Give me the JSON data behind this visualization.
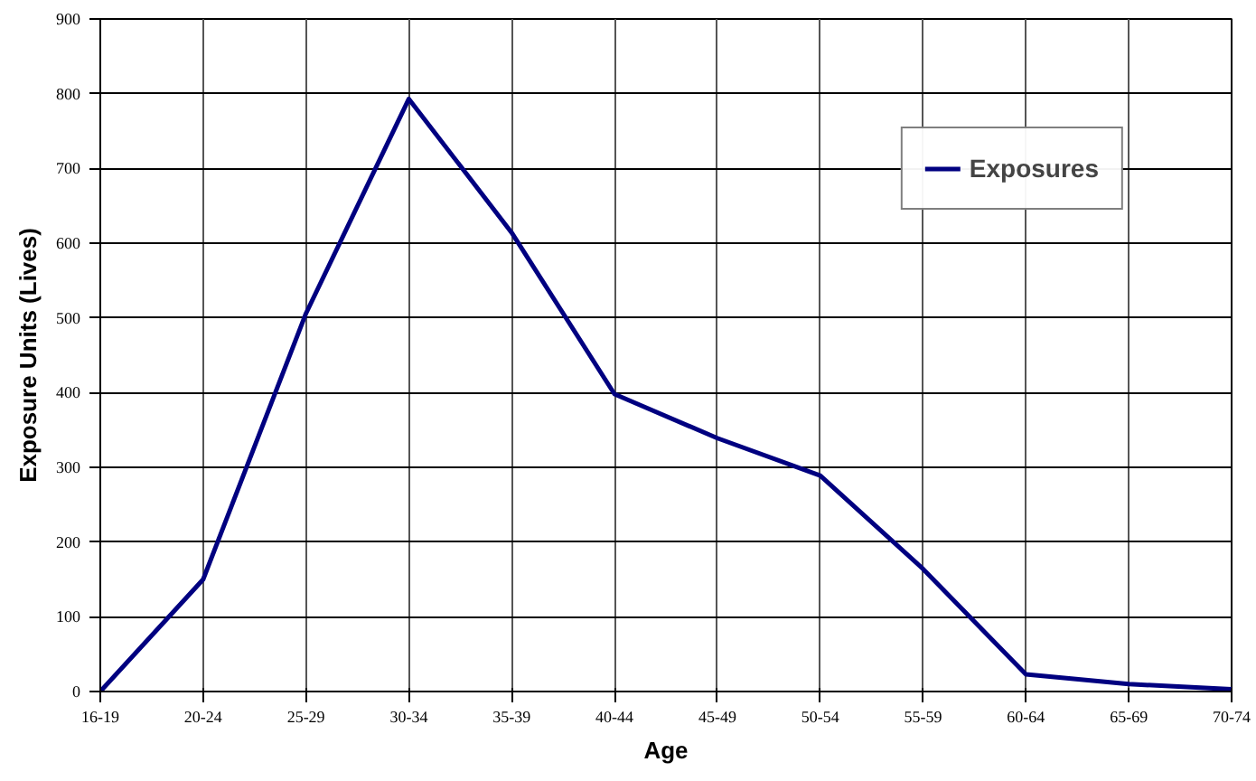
{
  "chart_data": {
    "type": "line",
    "xlabel": "Age",
    "ylabel": "Exposure Units (Lives)",
    "categories": [
      "16-19",
      "20-24",
      "25-29",
      "30-34",
      "35-39",
      "40-44",
      "45-49",
      "50-54",
      "55-59",
      "60-64",
      "65-69",
      "70-74"
    ],
    "ylim": [
      0,
      900
    ],
    "yticks": [
      0,
      100,
      200,
      300,
      400,
      500,
      600,
      700,
      800,
      900
    ],
    "grid": true,
    "legend": "top right",
    "line_style": "solid",
    "marker": "none",
    "series": [
      {
        "name": "Exposures",
        "color": "#000080",
        "values": [
          0,
          150,
          506,
          793,
          614,
          398,
          339,
          289,
          164,
          23,
          10,
          3
        ]
      }
    ]
  }
}
